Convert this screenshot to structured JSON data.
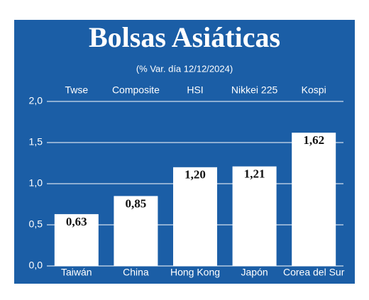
{
  "chart_data": {
    "type": "bar",
    "title": "Bolsas Asiáticas",
    "subtitle": "(% Var. día 12/12/2024)",
    "index_names": [
      "Twse",
      "Composite",
      "HSI",
      "Nikkei 225",
      "Kospi"
    ],
    "categories": [
      "Taiwán",
      "China",
      "Hong Kong",
      "Japón",
      "Corea del Sur"
    ],
    "values": [
      0.63,
      0.85,
      1.2,
      1.21,
      1.62
    ],
    "value_labels": [
      "0,63",
      "0,85",
      "1,20",
      "1,21",
      "1,62"
    ],
    "color": "#ffffff",
    "background": "#1b5ea6",
    "ylim": [
      0,
      2
    ],
    "yticks": [
      {
        "value": 0,
        "label": "0,0"
      },
      {
        "value": 0.5,
        "label": "0,5"
      },
      {
        "value": 1,
        "label": "1,0"
      },
      {
        "value": 1.5,
        "label": "1,5"
      },
      {
        "value": 2,
        "label": "2,0"
      }
    ],
    "grid": true
  }
}
